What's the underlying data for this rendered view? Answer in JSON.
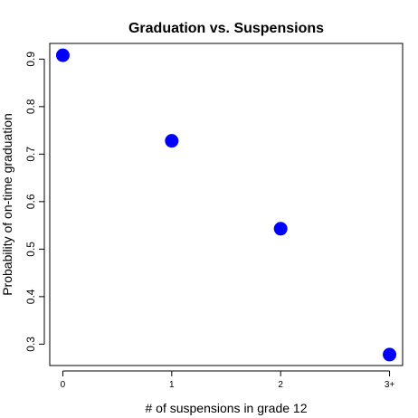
{
  "chart_data": {
    "type": "scatter",
    "title": "Graduation vs. Suspensions",
    "xlabel": "# of suspensions in grade 12",
    "ylabel": "Probability of on-time graduation",
    "categories": [
      "0",
      "1",
      "2",
      "3+"
    ],
    "x": [
      0,
      1,
      2,
      3
    ],
    "values": [
      0.908,
      0.728,
      0.543,
      0.278
    ],
    "y_ticks": [
      "0.3",
      "0.4",
      "0.5",
      "0.6",
      "0.7",
      "0.8",
      "0.9"
    ],
    "xlim": [
      -0.12,
      3.12
    ],
    "ylim": [
      0.255,
      0.933
    ],
    "grid": false,
    "point_color": "#0000FF"
  }
}
